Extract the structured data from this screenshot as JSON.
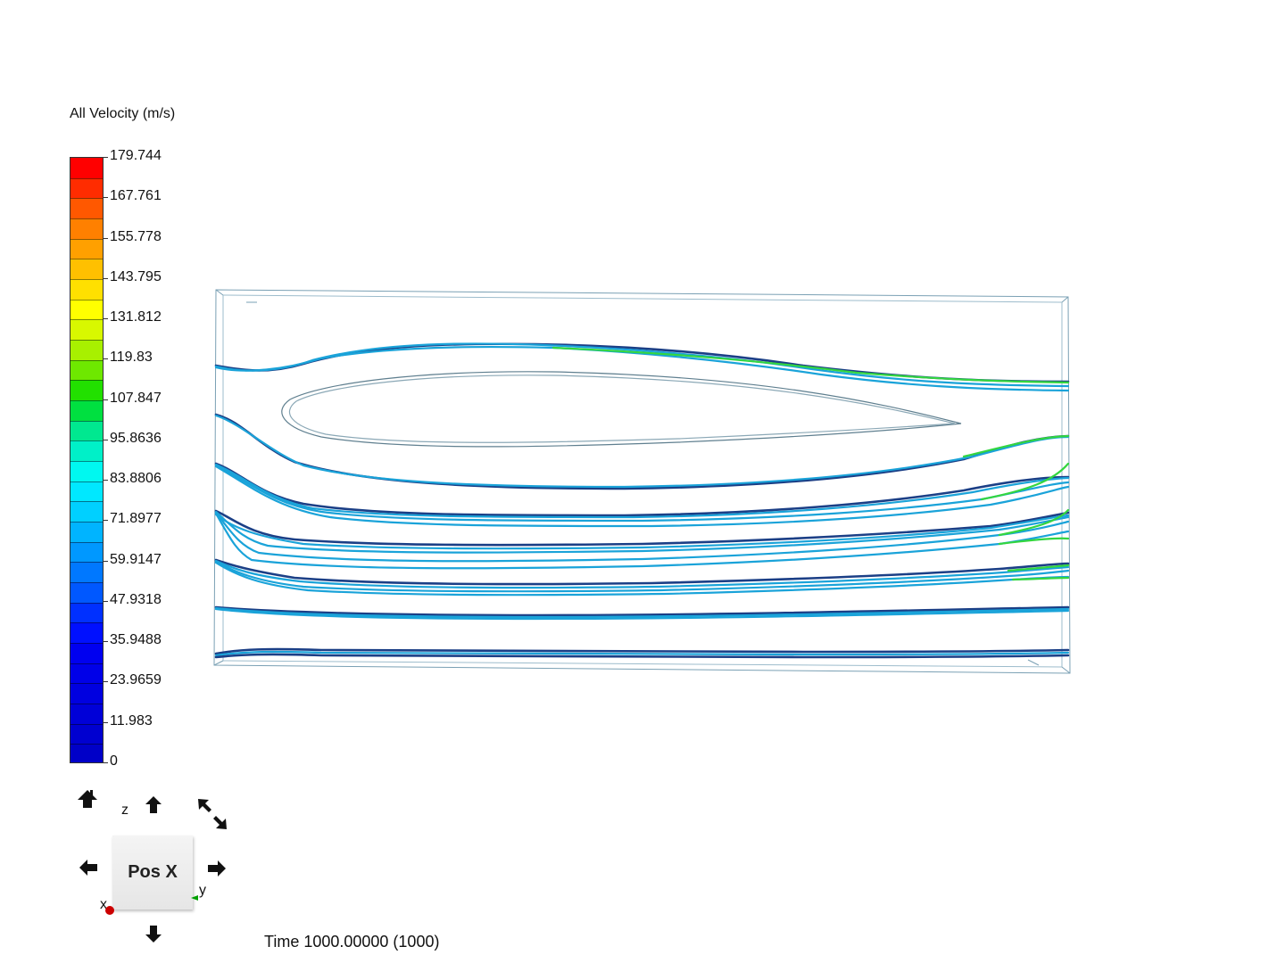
{
  "legend": {
    "title": "All Velocity (m/s)",
    "ticks": [
      "179.744",
      "167.761",
      "155.778",
      "143.795",
      "131.812",
      "119.83",
      "107.847",
      "95.8636",
      "83.8806",
      "71.8977",
      "59.9147",
      "47.9318",
      "35.9488",
      "23.9659",
      "11.983",
      "0"
    ],
    "colors": [
      "#ff0000",
      "#ff2c00",
      "#ff5800",
      "#ff8000",
      "#ffa000",
      "#ffc000",
      "#ffe000",
      "#ffff00",
      "#d8f800",
      "#a8f000",
      "#6ee800",
      "#22e000",
      "#00e040",
      "#00e890",
      "#00f0c8",
      "#00f8f0",
      "#00e8ff",
      "#00d0ff",
      "#00b4ff",
      "#0098ff",
      "#0078ff",
      "#0058ff",
      "#0030ff",
      "#0010ff",
      "#0000f0",
      "#0000e8",
      "#0000e0",
      "#0000d8",
      "#0000d0",
      "#0000c8"
    ]
  },
  "status": {
    "time": "Time 1000.00000 (1000)"
  },
  "orientation": {
    "cube_label": "Pos X",
    "axis_z": "z",
    "axis_y": "y",
    "axis_x": "x"
  },
  "icons": {
    "top_view": "home-up-arrow-icon",
    "rotate_up": "arrow-up-icon",
    "rotate_down": "arrow-down-icon",
    "rotate_left": "arrow-left-icon",
    "rotate_right": "arrow-right-icon",
    "roll": "roll-diagonal-arrows-icon"
  },
  "colors": {
    "streamline_main": "#1aa3d9",
    "streamline_dark": "#1b3f86",
    "streamline_high": "#33d640",
    "domain_edge": "#7aa0b4",
    "x_axis_dot": "#cc0000",
    "y_axis_tick": "#00a000"
  }
}
